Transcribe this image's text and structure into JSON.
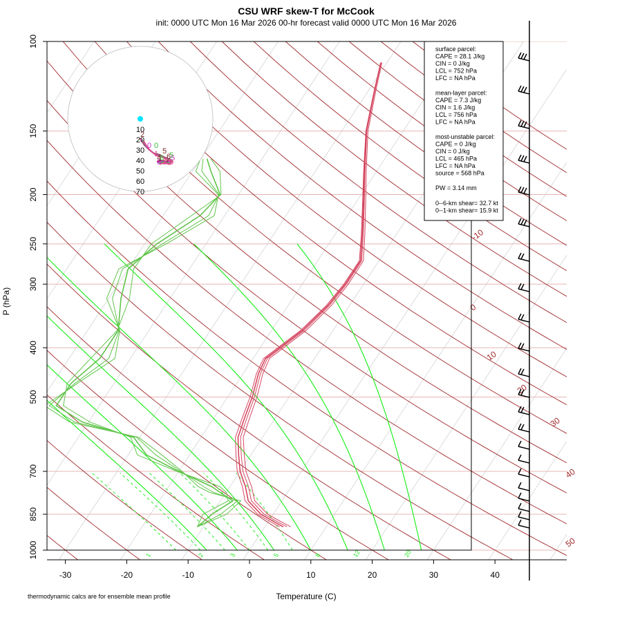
{
  "chart_data": {
    "type": "skew-t",
    "title": "CSU WRF skew-T for McCook",
    "subtitle": "init: 0000 UTC Mon 16 Mar 2026     00-hr forecast valid 0000 UTC Mon 16 Mar 2026",
    "xlabel": "Temperature (C)",
    "ylabel": "P (hPa)",
    "footnote": "thermodynamic calcs are for ensemble mean profile",
    "x_ticks": [
      -30,
      -20,
      -10,
      0,
      10,
      20,
      30,
      40
    ],
    "p_ticks": [
      100,
      150,
      200,
      250,
      300,
      400,
      500,
      700,
      850,
      1000
    ],
    "xlim": [
      -33,
      45
    ],
    "plim": [
      1050,
      100
    ],
    "dry_adiabat_labels": [
      "-10",
      "0",
      "10",
      "20",
      "30",
      "40",
      "50"
    ],
    "dry_adiabat_values": [
      -10,
      0,
      10,
      20,
      30,
      40,
      50
    ],
    "moist_adiabat_labels": [
      "1",
      "2",
      "3",
      "5",
      "8",
      "12",
      "20"
    ],
    "moist_adiabat_values": [
      1,
      2,
      3,
      5,
      8,
      12,
      20
    ],
    "colors": {
      "temperature": "#d4455f",
      "dewpoint": "#5fc44a",
      "dry_adiabat": "#a0282a",
      "moist_adiabat": "#22ee22",
      "isobar": "#e8b4b4",
      "isotherm": "#d4d4d4",
      "hodo_ring": "#bbbbbb",
      "hodo_surface": "#00e5ff"
    },
    "temperature_profile": {
      "p": [
        900,
        880,
        850,
        800,
        750,
        700,
        650,
        600,
        550,
        500,
        450,
        420,
        370,
        330,
        300,
        270,
        240,
        210,
        180,
        150,
        125,
        110
      ],
      "t": [
        3,
        1,
        -2,
        -5.5,
        -7.5,
        -10,
        -12,
        -14,
        -15,
        -16,
        -17.5,
        -18,
        -15,
        -13.5,
        -13,
        -13,
        -15.5,
        -18.5,
        -22,
        -26,
        -29,
        -31
      ]
    },
    "dewpoint_profile": {
      "p": [
        900,
        850,
        800,
        770,
        750,
        700,
        650,
        600,
        560,
        520,
        470,
        420,
        370,
        320,
        280,
        250,
        220,
        200,
        180,
        170
      ],
      "td": [
        -11,
        -10,
        -8,
        -11,
        -13,
        -20,
        -27,
        -31,
        -41,
        -47,
        -47,
        -45,
        -45,
        -48,
        -50,
        -48,
        -44,
        -43,
        -47,
        -49
      ]
    },
    "hodograph": {
      "ring_labels": [
        "10",
        "20",
        "30",
        "40",
        "50",
        "60",
        "70"
      ],
      "level_labels": [
        "2",
        "0",
        "0",
        "1",
        "5",
        "5",
        "5",
        "6",
        "6",
        "6",
        "6",
        "3",
        "4"
      ]
    },
    "parcels": [
      {
        "header": "surface parcel:",
        "lines": [
          "CAPE = 28.1  J/kg",
          "CIN = 0 J/kg",
          "LCL = 752 hPa",
          "LFC = NA hPa"
        ]
      },
      {
        "header": "mean-layer parcel:",
        "lines": [
          "CAPE = 7.3 J/kg",
          "CIN = 1.6 J/kg",
          "LCL = 756 hPa",
          "LFC = NA hPa"
        ]
      },
      {
        "header": "most-unstable parcel:",
        "lines": [
          "CAPE = 0 J/kg",
          "CIN = 0 J/kg",
          "LCL = 465 hPa",
          "LFC = NA hPa",
          "source = 568 hPa"
        ]
      }
    ],
    "pw": "PW =   3.14 mm",
    "shear": [
      "0--6-km shear= 32.7 kt",
      "0--1-km shear= 15.9 kt"
    ]
  }
}
